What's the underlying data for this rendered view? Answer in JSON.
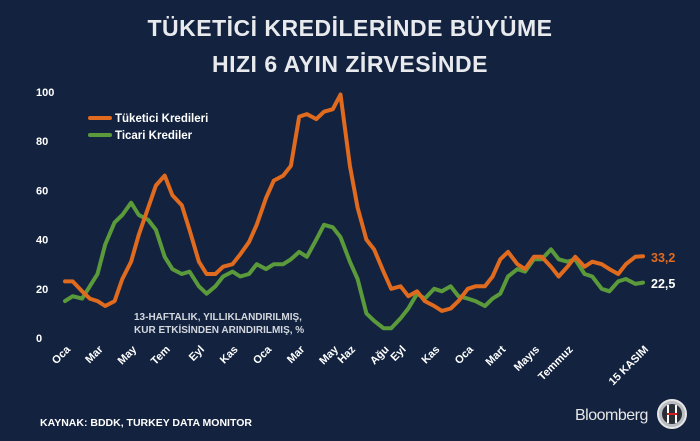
{
  "chart_data": {
    "type": "line",
    "title": [
      "TÜKETİCİ KREDİLERİNDE BÜYÜME",
      "HIZI 6 AYIN ZİRVESİNDE"
    ],
    "note": [
      "13-HAFTALIK, YILLIKLANDIRILMIŞ,",
      "KUR ETKİSİNDEN ARINDIRILMIŞ, %"
    ],
    "source": "KAYNAK: BDDK, TURKEY DATA MONITOR",
    "brand": "Bloomberg",
    "logo_text": "HT",
    "ylim": [
      0,
      100
    ],
    "y_ticks": [
      "0",
      "20",
      "40",
      "60",
      "80",
      "100"
    ],
    "grid": false,
    "legend_placement": "top-left",
    "x_ticks": [
      {
        "label": "Oca",
        "date": "2019-01-01"
      },
      {
        "label": "Mar",
        "date": "2019-03-01"
      },
      {
        "label": "May",
        "date": "2019-05-01"
      },
      {
        "label": "Tem",
        "date": "2019-07-01"
      },
      {
        "label": "Eyl",
        "date": "2019-09-01"
      },
      {
        "label": "Kas",
        "date": "2019-11-01"
      },
      {
        "label": "Oca",
        "date": "2020-01-01"
      },
      {
        "label": "Mar",
        "date": "2020-03-01"
      },
      {
        "label": "May",
        "date": "2020-05-01"
      },
      {
        "label": "Haz",
        "date": "2020-06-01"
      },
      {
        "label": "Ağu",
        "date": "2020-08-01"
      },
      {
        "label": "Eyl",
        "date": "2020-09-01"
      },
      {
        "label": "Kas",
        "date": "2020-11-01"
      },
      {
        "label": "Oca",
        "date": "2021-01-01"
      },
      {
        "label": "Mart",
        "date": "2021-03-01"
      },
      {
        "label": "Mayıs",
        "date": "2021-05-01"
      },
      {
        "label": "Temmuz",
        "date": "2021-07-01"
      },
      {
        "label": "15 KASIM",
        "date": "2021-11-15"
      }
    ],
    "x": [
      "2019-01-01",
      "2019-01-15",
      "2019-02-01",
      "2019-02-15",
      "2019-03-01",
      "2019-03-15",
      "2019-04-01",
      "2019-04-15",
      "2019-05-01",
      "2019-05-15",
      "2019-06-01",
      "2019-06-15",
      "2019-07-01",
      "2019-07-15",
      "2019-08-01",
      "2019-08-15",
      "2019-09-01",
      "2019-09-15",
      "2019-10-01",
      "2019-10-15",
      "2019-11-01",
      "2019-11-15",
      "2019-12-01",
      "2019-12-15",
      "2020-01-01",
      "2020-01-15",
      "2020-02-01",
      "2020-02-15",
      "2020-03-01",
      "2020-03-15",
      "2020-04-01",
      "2020-04-15",
      "2020-05-01",
      "2020-05-15",
      "2020-06-01",
      "2020-06-15",
      "2020-07-01",
      "2020-07-15",
      "2020-08-01",
      "2020-08-15",
      "2020-09-01",
      "2020-09-15",
      "2020-10-01",
      "2020-10-15",
      "2020-11-01",
      "2020-11-15",
      "2020-12-01",
      "2020-12-15",
      "2021-01-01",
      "2021-01-15",
      "2021-02-01",
      "2021-02-15",
      "2021-03-01",
      "2021-03-15",
      "2021-04-01",
      "2021-04-15",
      "2021-05-01",
      "2021-05-15",
      "2021-06-01",
      "2021-06-15",
      "2021-07-01",
      "2021-07-15",
      "2021-08-01",
      "2021-08-15",
      "2021-09-01",
      "2021-09-15",
      "2021-10-01",
      "2021-10-15",
      "2021-11-01",
      "2021-11-15"
    ],
    "series": [
      {
        "name": "Tüketici Kredileri",
        "color": "#e06a1e",
        "end_label": "33,2",
        "end_label_color": "#e06a1e",
        "values": [
          23,
          23,
          19,
          16,
          15,
          13,
          15,
          24,
          31,
          42,
          53,
          62,
          66,
          58,
          54,
          44,
          31,
          26,
          26,
          29,
          30,
          34,
          39,
          46,
          57,
          64,
          66,
          70,
          90,
          91,
          89,
          92,
          93,
          99,
          70,
          53,
          40,
          36,
          27,
          20,
          21,
          17,
          19,
          15,
          13,
          11,
          12,
          15,
          20,
          21,
          21,
          25,
          32,
          35,
          30,
          28,
          33,
          33,
          29,
          25,
          29,
          33,
          29,
          31,
          30,
          28,
          26,
          30,
          33,
          33.2
        ]
      },
      {
        "name": "Ticari Krediler",
        "color": "#5b9a3b",
        "end_label": "22,5",
        "end_label_color": "#ffffff",
        "values": [
          15,
          17,
          16,
          21,
          26,
          38,
          47,
          50,
          55,
          50,
          48,
          44,
          33,
          28,
          26,
          27,
          21,
          18,
          21,
          25,
          27,
          25,
          26,
          30,
          28,
          30,
          30,
          32,
          35,
          33,
          40,
          46,
          45,
          41,
          31,
          24,
          10,
          7,
          4,
          4,
          8,
          12,
          18,
          16,
          20,
          19,
          21,
          17,
          16,
          15,
          13,
          16,
          18,
          25,
          28,
          27,
          32,
          32,
          36,
          32,
          31,
          32,
          26,
          25,
          20,
          19,
          23,
          24,
          22,
          22.5
        ]
      }
    ]
  },
  "colors": {
    "background": "#13233f",
    "text": "#ffffff"
  }
}
